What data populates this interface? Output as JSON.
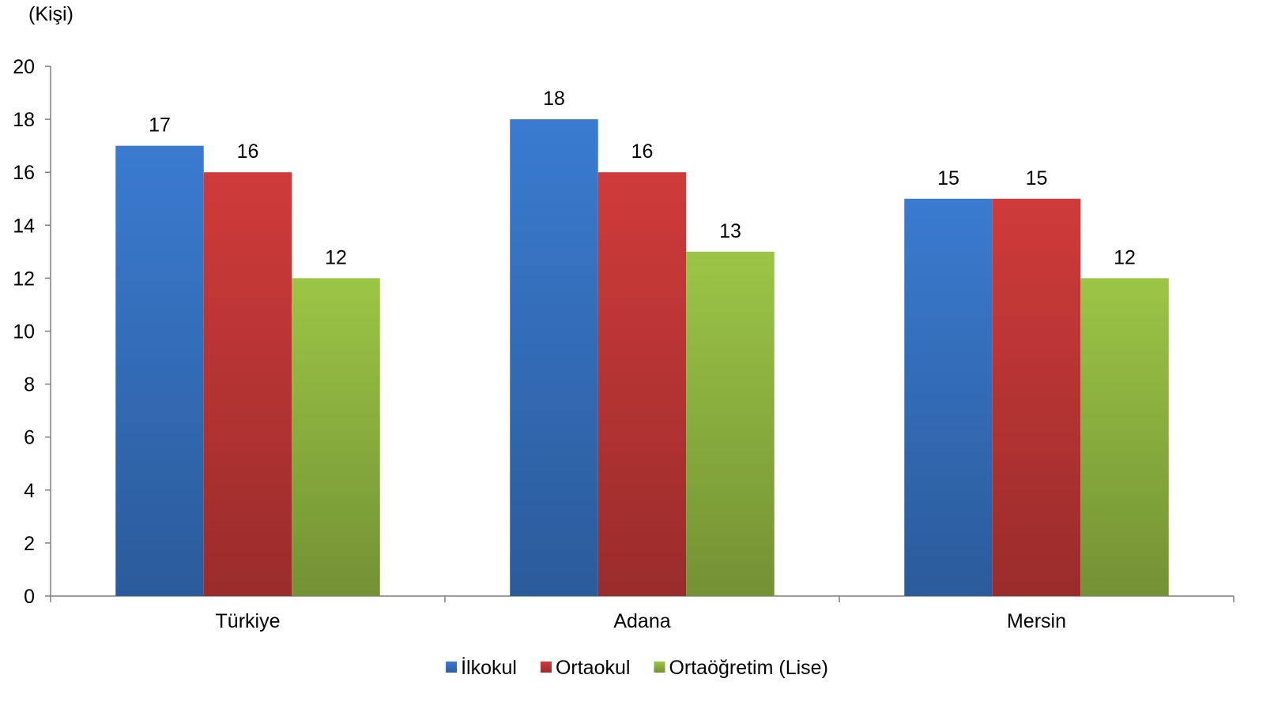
{
  "chart_data": {
    "type": "bar",
    "ylabel": "(Kişi)",
    "categories": [
      "Türkiye",
      "Adana",
      "Mersin"
    ],
    "series": [
      {
        "name": "İlkokul",
        "values": [
          17,
          18,
          15
        ],
        "color": "#3a7bd0"
      },
      {
        "name": "Ortaokul",
        "values": [
          16,
          16,
          15
        ],
        "color": "#cf3b3a"
      },
      {
        "name": "Ortaöğretim (Lise)",
        "values": [
          12,
          13,
          12
        ],
        "color": "#9cc546"
      }
    ],
    "ylim": [
      0,
      20
    ],
    "yticks": [
      0,
      2,
      4,
      6,
      8,
      10,
      12,
      14,
      16,
      18,
      20
    ],
    "grid": false,
    "legend_position": "bottom",
    "data_labels": true
  }
}
